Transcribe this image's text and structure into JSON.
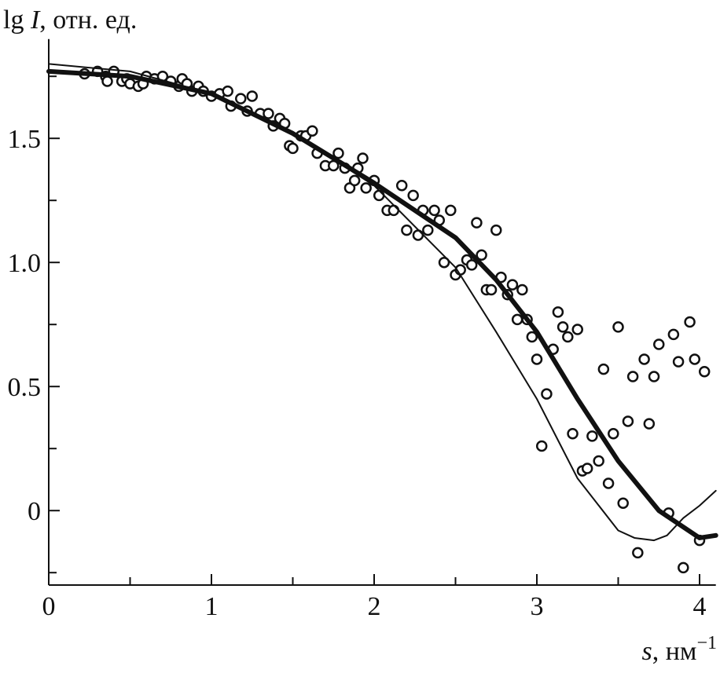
{
  "chart_data": {
    "type": "scatter",
    "ylabel": {
      "prefix": "lg ",
      "var": "I",
      "suffix": ", отн. ед."
    },
    "xlabel": {
      "var": "s",
      "suffix": ", нм",
      "exponent": "−1"
    },
    "xlim": [
      0,
      4.1
    ],
    "ylim": [
      -0.3,
      1.9
    ],
    "xticks": [
      0,
      1,
      2,
      3,
      4
    ],
    "yticks": [
      0,
      0.5,
      {
        "value": 1,
        "label": "1.0"
      },
      1.5
    ],
    "xminor_ticks": [
      0.5,
      1.5,
      2.5,
      3.5
    ],
    "yminor_ticks": [
      -0.25,
      0.25,
      0.75,
      1.25,
      1.75
    ],
    "color": "#111111",
    "series": [
      {
        "kind": "points",
        "x": [
          0.22,
          0.3,
          0.35,
          0.36,
          0.4,
          0.45,
          0.48,
          0.5,
          0.55,
          0.58,
          0.6,
          0.65,
          0.7,
          0.75,
          0.8,
          0.82,
          0.85,
          0.88,
          0.92,
          0.95,
          1.0,
          1.05,
          1.1,
          1.12,
          1.18,
          1.22,
          1.25,
          1.3,
          1.35,
          1.38,
          1.42,
          1.45,
          1.48,
          1.5,
          1.55,
          1.58,
          1.62,
          1.65,
          1.7,
          1.75,
          1.78,
          1.82,
          1.85,
          1.88,
          1.9,
          1.93,
          1.95,
          2.0,
          2.03,
          2.08,
          2.12,
          2.17,
          2.2,
          2.24,
          2.27,
          2.3,
          2.33,
          2.37,
          2.4,
          2.43,
          2.47,
          2.5,
          2.53,
          2.57,
          2.6,
          2.63,
          2.66,
          2.69,
          2.72,
          2.75,
          2.78,
          2.82,
          2.85,
          2.88,
          2.91,
          2.94,
          2.97,
          3.0,
          3.03,
          3.06,
          3.1,
          3.13,
          3.16,
          3.19,
          3.22,
          3.25,
          3.28,
          3.31,
          3.34,
          3.38,
          3.41,
          3.44,
          3.47,
          3.5,
          3.53,
          3.56,
          3.59,
          3.62,
          3.66,
          3.69,
          3.72,
          3.75,
          3.81,
          3.84,
          3.87,
          3.9,
          3.94,
          3.97,
          4.0,
          4.03
        ],
        "y": [
          1.76,
          1.77,
          1.75,
          1.73,
          1.77,
          1.73,
          1.74,
          1.72,
          1.71,
          1.72,
          1.75,
          1.74,
          1.75,
          1.73,
          1.71,
          1.74,
          1.72,
          1.69,
          1.71,
          1.69,
          1.67,
          1.68,
          1.69,
          1.63,
          1.66,
          1.61,
          1.67,
          1.6,
          1.6,
          1.55,
          1.58,
          1.56,
          1.47,
          1.46,
          1.51,
          1.51,
          1.53,
          1.44,
          1.39,
          1.39,
          1.44,
          1.38,
          1.3,
          1.33,
          1.38,
          1.42,
          1.3,
          1.33,
          1.27,
          1.21,
          1.21,
          1.31,
          1.13,
          1.27,
          1.11,
          1.21,
          1.13,
          1.21,
          1.17,
          1.0,
          1.21,
          0.95,
          0.97,
          1.01,
          0.99,
          1.16,
          1.03,
          0.89,
          0.89,
          1.13,
          0.94,
          0.87,
          0.91,
          0.77,
          0.89,
          0.77,
          0.7,
          0.61,
          0.26,
          0.47,
          0.65,
          0.8,
          0.74,
          0.7,
          0.31,
          0.73,
          0.16,
          0.17,
          0.3,
          0.2,
          0.57,
          0.11,
          0.31,
          0.74,
          0.03,
          0.36,
          0.54,
          -0.17,
          0.61,
          0.35,
          0.54,
          0.67,
          -0.01,
          0.71,
          0.6,
          -0.23,
          0.76,
          0.61,
          -0.12,
          0.56
        ]
      },
      {
        "kind": "line",
        "line_width": 6,
        "x": [
          0,
          0.5,
          1,
          1.5,
          2,
          2.5,
          2.75,
          3,
          3.25,
          3.5,
          3.75,
          4,
          4.1
        ],
        "y": [
          1.77,
          1.75,
          1.68,
          1.52,
          1.32,
          1.1,
          0.93,
          0.72,
          0.45,
          0.2,
          0,
          -0.11,
          -0.1
        ]
      },
      {
        "kind": "line",
        "line_width": 2,
        "x": [
          0,
          0.5,
          1,
          1.5,
          2,
          2.5,
          2.75,
          3,
          3.25,
          3.5,
          3.6,
          3.72,
          3.8,
          3.9,
          4,
          4.1
        ],
        "y": [
          1.8,
          1.77,
          1.68,
          1.52,
          1.31,
          0.98,
          0.72,
          0.45,
          0.13,
          -0.08,
          -0.11,
          -0.12,
          -0.1,
          -0.03,
          0.02,
          0.08
        ]
      }
    ]
  }
}
